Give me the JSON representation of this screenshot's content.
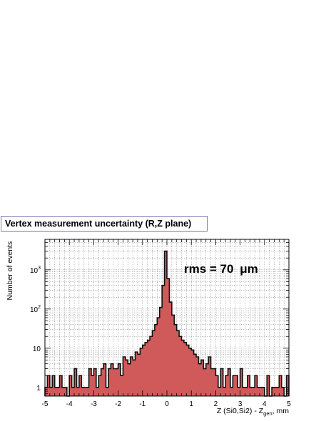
{
  "title": "Vertex measurement uncertainty (R,Z plane)",
  "ylabel": "Number of events",
  "xlabel_main": "Z (Si0,Si2) - Z",
  "xlabel_sub": "gen",
  "xlabel_tail": ",  mm",
  "annotation_prefix": "rms = 70 ",
  "annotation_unit": "μm",
  "colors": {
    "fill": "#d05a5a",
    "outline": "#111111",
    "grid": "#6b6b6b",
    "title_border": "#7a78b0"
  },
  "chart_data": {
    "type": "bar",
    "histogram": true,
    "title": "Vertex measurement uncertainty (R,Z plane)",
    "xlabel": "Z (Si0,Si2) - Z_gen,  mm",
    "ylabel": "Number of events",
    "xlim": [
      -5,
      5
    ],
    "ylim": [
      0.6,
      6000
    ],
    "y_scale": "log",
    "grid": true,
    "x_ticks": [
      "-5",
      "-4",
      "-3",
      "-2",
      "-1",
      "0",
      "1",
      "2",
      "3",
      "4",
      "5"
    ],
    "y_ticks": [
      {
        "label_base": "1",
        "label_exp": "",
        "value": 1
      },
      {
        "label_base": "10",
        "label_exp": "",
        "value": 10
      },
      {
        "label_base": "10",
        "label_exp": "2",
        "value": 100
      },
      {
        "label_base": "10",
        "label_exp": "3",
        "value": 1000
      }
    ],
    "bin_width": 0.1,
    "x_bin_centers": [
      -4.95,
      -4.85,
      -4.75,
      -4.65,
      -4.55,
      -4.45,
      -4.35,
      -4.25,
      -4.15,
      -4.05,
      -3.95,
      -3.85,
      -3.75,
      -3.65,
      -3.55,
      -3.45,
      -3.35,
      -3.25,
      -3.15,
      -3.05,
      -2.95,
      -2.85,
      -2.75,
      -2.65,
      -2.55,
      -2.45,
      -2.35,
      -2.25,
      -2.15,
      -2.05,
      -1.95,
      -1.85,
      -1.75,
      -1.65,
      -1.55,
      -1.45,
      -1.35,
      -1.25,
      -1.15,
      -1.05,
      -0.95,
      -0.85,
      -0.75,
      -0.65,
      -0.55,
      -0.45,
      -0.35,
      -0.25,
      -0.15,
      -0.05,
      0.05,
      0.15,
      0.25,
      0.35,
      0.45,
      0.55,
      0.65,
      0.75,
      0.85,
      0.95,
      1.05,
      1.15,
      1.25,
      1.35,
      1.45,
      1.55,
      1.65,
      1.75,
      1.85,
      1.95,
      2.05,
      2.15,
      2.25,
      2.35,
      2.45,
      2.55,
      2.65,
      2.75,
      2.85,
      2.95,
      3.05,
      3.15,
      3.25,
      3.35,
      3.45,
      3.55,
      3.65,
      3.75,
      3.85,
      3.95,
      4.05,
      4.15,
      4.25,
      4.35,
      4.45,
      4.55,
      4.65,
      4.75,
      4.85,
      4.95
    ],
    "values": [
      1,
      2,
      1,
      2,
      1,
      1,
      2,
      1,
      1,
      0,
      2,
      1,
      3,
      1,
      2,
      1,
      1,
      1,
      3,
      2,
      3,
      1,
      2,
      3,
      4,
      1,
      3,
      4,
      3,
      3,
      4,
      2,
      6,
      5,
      4,
      6,
      5,
      8,
      7,
      10,
      12,
      14,
      16,
      20,
      28,
      40,
      60,
      110,
      400,
      3000,
      600,
      150,
      70,
      40,
      28,
      20,
      16,
      14,
      12,
      10,
      9,
      7,
      6,
      4,
      5,
      3,
      4,
      6,
      3,
      3,
      2,
      1,
      3,
      1,
      2,
      3,
      1,
      2,
      2,
      1,
      3,
      1,
      1,
      2,
      1,
      1,
      2,
      1,
      1,
      1,
      0,
      2,
      0,
      1,
      1,
      1,
      2,
      1,
      0,
      2
    ]
  }
}
